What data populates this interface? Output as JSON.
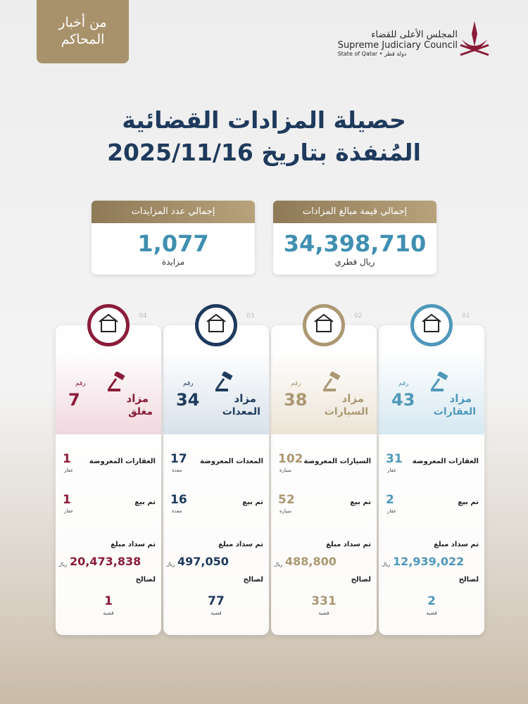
{
  "badge": {
    "line1": "من أخبار",
    "line2": "المحاكم"
  },
  "logo": {
    "arabic": "المجلس الأعلى للقضاء",
    "english": "Supreme Judiciary Council",
    "state": "State of Qatar • دولة قطر"
  },
  "title": {
    "line1": "حصيلة المزادات القضائية",
    "line2": "المُنفذة بتاريخ 2025/11/16"
  },
  "totals": [
    {
      "label": "إجمالي قيمة مبالغ المزادات",
      "value": "34,398,710",
      "unit": "ريال قطري"
    },
    {
      "label": "إجمالي عدد المزايدات",
      "value": "1,077",
      "unit": "مزايدة"
    }
  ],
  "cards": [
    {
      "number": "01",
      "rakm": "رقم",
      "count": "43",
      "title_line1": "مزاد",
      "title_line2": "العقارات",
      "offered_label": "العقارات المعروضة",
      "offered": "31",
      "offered_unit": "عقار",
      "sold_label": "تم بيع",
      "sold": "2",
      "sold_unit": "عقار",
      "paid_label": "تم سداد مبلغ",
      "paid": "12,939,022",
      "currency": "ريال",
      "beneficiary": "لصالح",
      "cases": "2",
      "cases_unit": "قضية"
    },
    {
      "number": "02",
      "rakm": "رقم",
      "count": "38",
      "title_line1": "مزاد",
      "title_line2": "السيارات",
      "offered_label": "السيارات المعروضة",
      "offered": "102",
      "offered_unit": "سيارة",
      "sold_label": "تم بيع",
      "sold": "52",
      "sold_unit": "سيارة",
      "paid_label": "تم سداد مبلغ",
      "paid": "488,800",
      "currency": "ريال",
      "beneficiary": "لصالح",
      "cases": "331",
      "cases_unit": "قضية"
    },
    {
      "number": "03",
      "rakm": "رقم",
      "count": "34",
      "title_line1": "مزاد",
      "title_line2": "المعدات",
      "offered_label": "المعدات المعروضة",
      "offered": "17",
      "offered_unit": "معدة",
      "sold_label": "تم بيع",
      "sold": "16",
      "sold_unit": "معدة",
      "paid_label": "تم سداد مبلغ",
      "paid": "497,050",
      "currency": "ريال",
      "beneficiary": "لصالح",
      "cases": "77",
      "cases_unit": "قضية"
    },
    {
      "number": "04",
      "rakm": "رقم",
      "count": "7",
      "title_line1": "مزاد",
      "title_line2": "مغلق",
      "offered_label": "العقارات المعروضة",
      "offered": "1",
      "offered_unit": "عقار",
      "sold_label": "تم بيع",
      "sold": "1",
      "sold_unit": "عقار",
      "paid_label": "تم سداد مبلغ",
      "paid": "20,473,838",
      "currency": "ريال",
      "beneficiary": "لصالح",
      "cases": "1",
      "cases_unit": "قضية"
    }
  ]
}
